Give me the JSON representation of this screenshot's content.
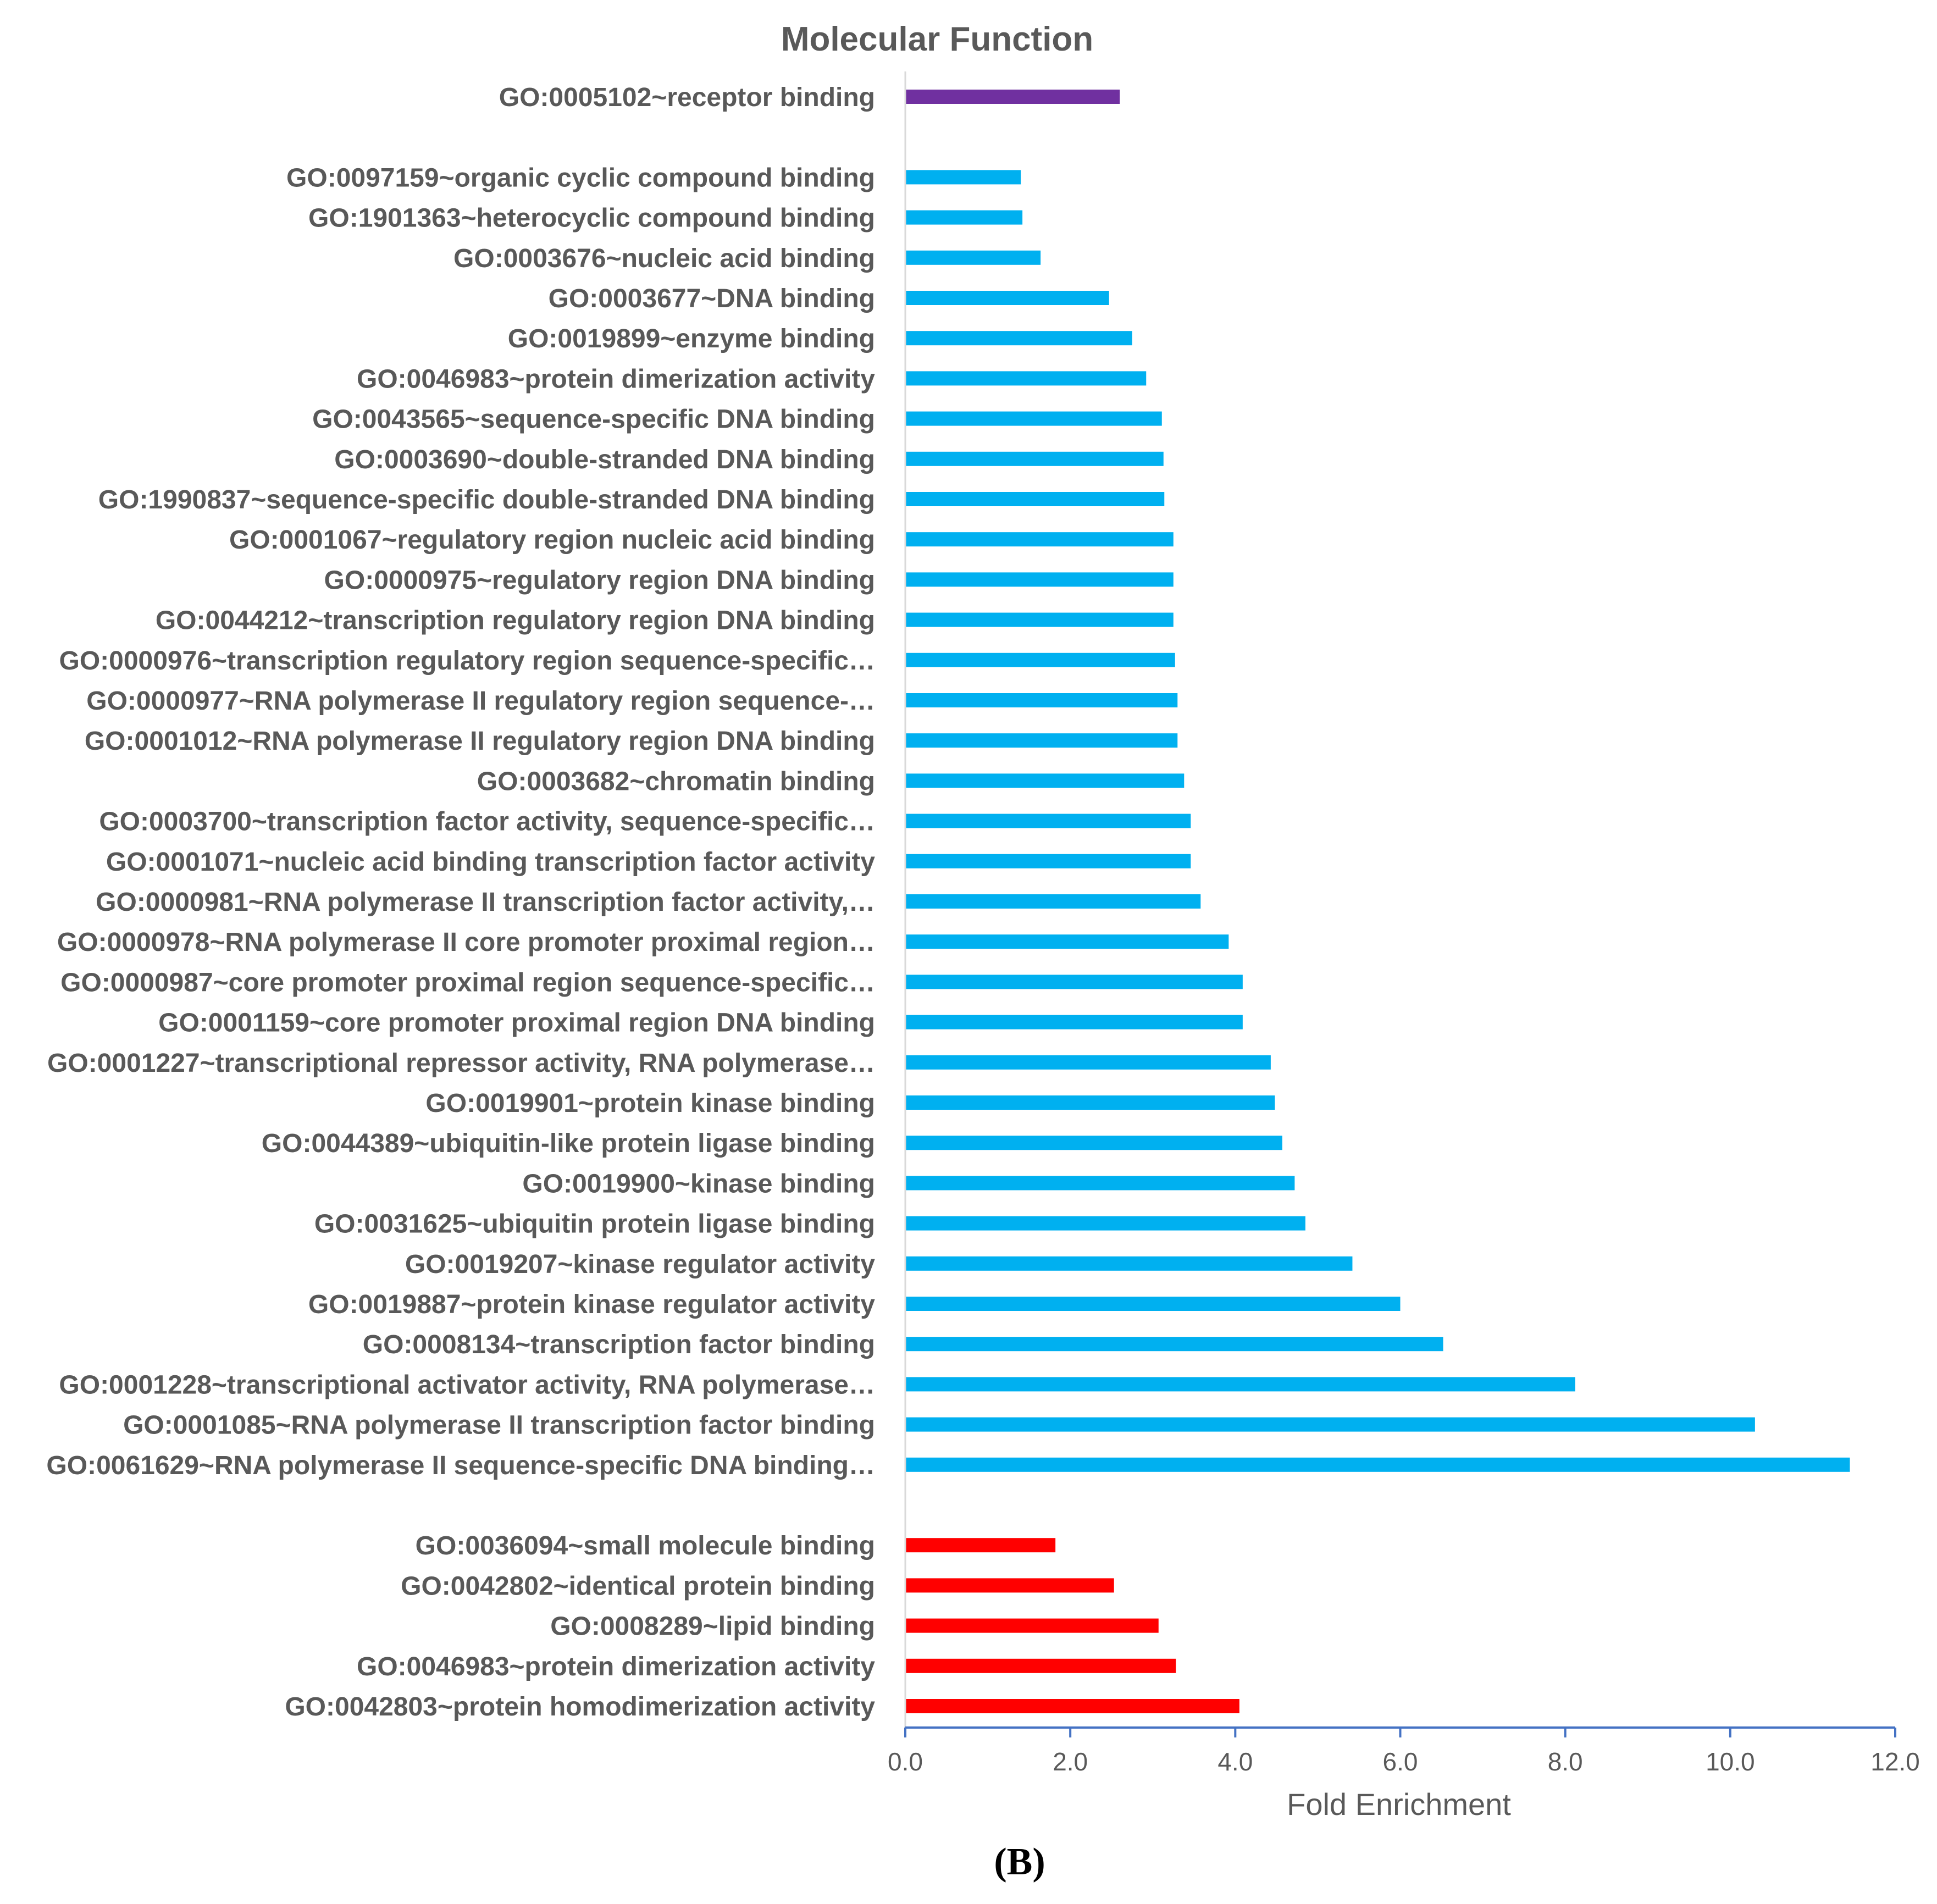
{
  "chart_data": {
    "type": "bar",
    "orientation": "horizontal",
    "title": "Molecular Function",
    "xlabel": "Fold Enrichment",
    "ylabel": "",
    "xlim": [
      0,
      12
    ],
    "xticks": [
      "0.0",
      "2.0",
      "4.0",
      "6.0",
      "8.0",
      "10.0",
      "12.0"
    ],
    "panel_label": "(B)",
    "colors": {
      "purple": "#7030A0",
      "blue": "#00B0F0",
      "red": "#FF0000",
      "text": "#595959",
      "axis": "#4472C4"
    },
    "groups": [
      {
        "name": "purple",
        "color": "#7030A0",
        "items": [
          {
            "label": "GO:0005102~receptor binding",
            "value": 2.6
          }
        ]
      },
      {
        "name": "blue",
        "color": "#00B0F0",
        "items": [
          {
            "label": "GO:0097159~organic cyclic compound binding",
            "value": 1.4
          },
          {
            "label": "GO:1901363~heterocyclic compound binding",
            "value": 1.42
          },
          {
            "label": "GO:0003676~nucleic acid binding",
            "value": 1.64
          },
          {
            "label": "GO:0003677~DNA binding",
            "value": 2.47
          },
          {
            "label": "GO:0019899~enzyme binding",
            "value": 2.75
          },
          {
            "label": "GO:0046983~protein dimerization activity",
            "value": 2.92
          },
          {
            "label": "GO:0043565~sequence-specific DNA binding",
            "value": 3.11
          },
          {
            "label": "GO:0003690~double-stranded DNA binding",
            "value": 3.13
          },
          {
            "label": "GO:1990837~sequence-specific double-stranded DNA binding",
            "value": 3.14
          },
          {
            "label": "GO:0001067~regulatory region nucleic acid binding",
            "value": 3.25
          },
          {
            "label": "GO:0000975~regulatory region DNA binding",
            "value": 3.25
          },
          {
            "label": "GO:0044212~transcription regulatory region DNA binding",
            "value": 3.25
          },
          {
            "label": "GO:0000976~transcription regulatory region sequence-specific…",
            "value": 3.27
          },
          {
            "label": "GO:0000977~RNA polymerase II regulatory region sequence-…",
            "value": 3.3
          },
          {
            "label": "GO:0001012~RNA polymerase II regulatory region DNA binding",
            "value": 3.3
          },
          {
            "label": "GO:0003682~chromatin binding",
            "value": 3.38
          },
          {
            "label": "GO:0003700~transcription factor activity, sequence-specific…",
            "value": 3.46
          },
          {
            "label": "GO:0001071~nucleic acid binding transcription factor activity",
            "value": 3.46
          },
          {
            "label": "GO:0000981~RNA polymerase II transcription factor activity,…",
            "value": 3.58
          },
          {
            "label": "GO:0000978~RNA polymerase II core promoter proximal region…",
            "value": 3.92
          },
          {
            "label": "GO:0000987~core promoter proximal region sequence-specific…",
            "value": 4.09
          },
          {
            "label": "GO:0001159~core promoter proximal region DNA binding",
            "value": 4.09
          },
          {
            "label": "GO:0001227~transcriptional repressor activity, RNA polymerase…",
            "value": 4.43
          },
          {
            "label": "GO:0019901~protein kinase binding",
            "value": 4.48
          },
          {
            "label": "GO:0044389~ubiquitin-like protein ligase binding",
            "value": 4.57
          },
          {
            "label": "GO:0019900~kinase binding",
            "value": 4.72
          },
          {
            "label": "GO:0031625~ubiquitin protein ligase binding",
            "value": 4.85
          },
          {
            "label": "GO:0019207~kinase regulator activity",
            "value": 5.42
          },
          {
            "label": "GO:0019887~protein kinase regulator activity",
            "value": 6.0
          },
          {
            "label": "GO:0008134~transcription factor binding",
            "value": 6.52
          },
          {
            "label": "GO:0001228~transcriptional activator activity, RNA polymerase…",
            "value": 8.12
          },
          {
            "label": "GO:0001085~RNA polymerase II transcription factor binding",
            "value": 10.3
          },
          {
            "label": "GO:0061629~RNA polymerase II sequence-specific DNA binding…",
            "value": 11.45
          }
        ]
      },
      {
        "name": "red",
        "color": "#FF0000",
        "items": [
          {
            "label": "GO:0036094~small molecule binding",
            "value": 1.82
          },
          {
            "label": "GO:0042802~identical protein binding",
            "value": 2.53
          },
          {
            "label": "GO:0008289~lipid binding",
            "value": 3.07
          },
          {
            "label": "GO:0046983~protein dimerization activity",
            "value": 3.28
          },
          {
            "label": "GO:0042803~protein homodimerization activity",
            "value": 4.05
          }
        ]
      }
    ]
  }
}
